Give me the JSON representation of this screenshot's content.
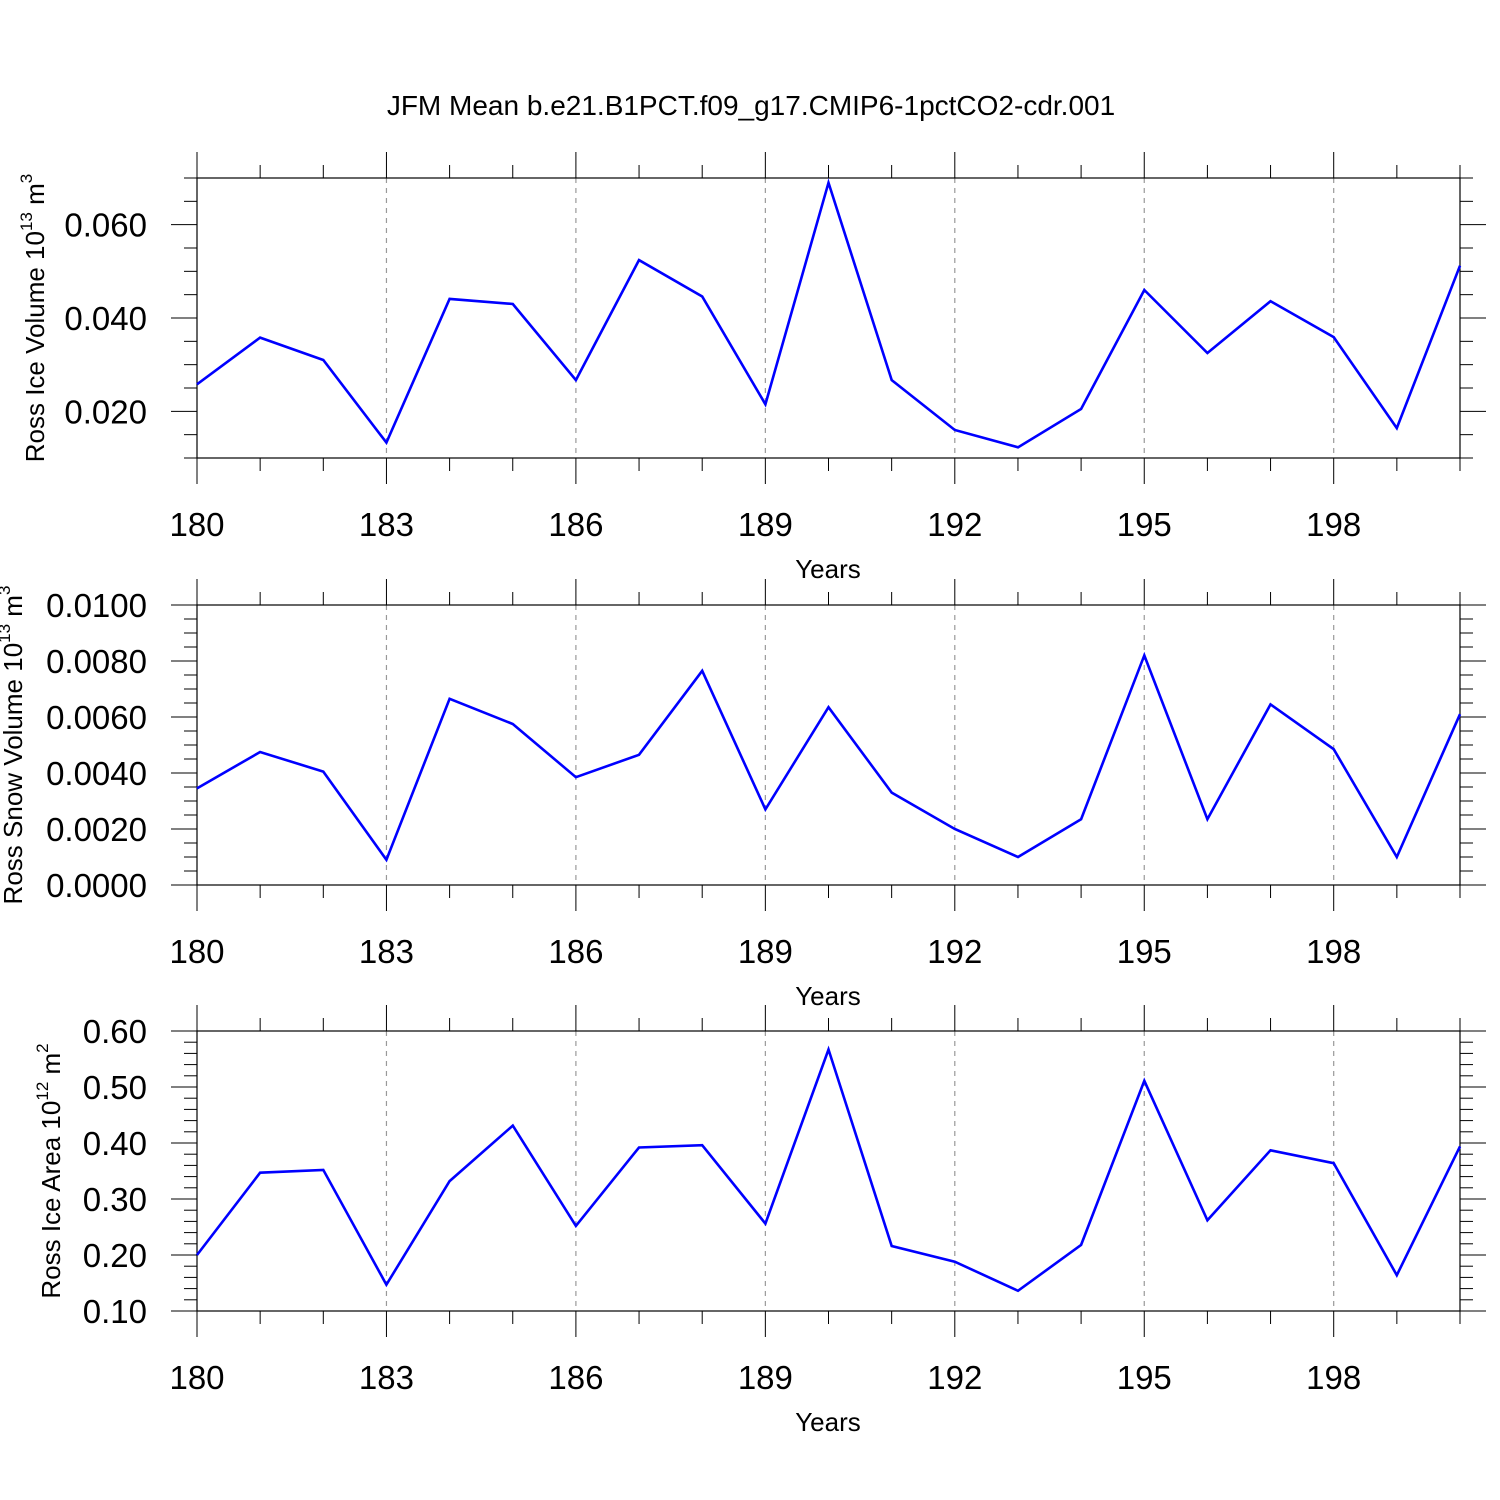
{
  "title": "JFM Mean b.e21.B1PCT.f09_g17.CMIP6-1pctCO2-cdr.001",
  "colors": {
    "line": "#0000ff",
    "grid": "#999999",
    "axis": "#000000"
  },
  "chart_data": [
    {
      "type": "line",
      "ylabel_main": "Ross Ice Volume 10",
      "ylabel_exp": "13",
      "ylabel_unit": " m",
      "ylabel_unit_exp": "3",
      "xlabel": "Years",
      "xlim": [
        180,
        200
      ],
      "ylim": [
        0.01,
        0.07
      ],
      "yticks": [
        0.02,
        0.04,
        0.06
      ],
      "ytick_labels": [
        "0.020",
        "0.040",
        "0.060"
      ],
      "xticks": [
        180,
        183,
        186,
        189,
        192,
        195,
        198
      ],
      "xtick_labels": [
        "180",
        "183",
        "186",
        "189",
        "192",
        "195",
        "198"
      ],
      "grid_x": [
        183,
        186,
        189,
        192,
        195,
        198
      ],
      "x": [
        180,
        181,
        182,
        183,
        184,
        185,
        186,
        187,
        188,
        189,
        190,
        191,
        192,
        193,
        194,
        195,
        196,
        197,
        198,
        199,
        200
      ],
      "series": [
        {
          "values": [
            0.0258,
            0.0358,
            0.031,
            0.0133,
            0.0441,
            0.043,
            0.0267,
            0.0524,
            0.0446,
            0.0215,
            0.069,
            0.0267,
            0.016,
            0.0123,
            0.0205,
            0.046,
            0.0325,
            0.0436,
            0.0359,
            0.0164,
            0.0512
          ]
        }
      ]
    },
    {
      "type": "line",
      "ylabel_main": "Ross Snow Volume 10",
      "ylabel_exp": "13",
      "ylabel_unit": " m",
      "ylabel_unit_exp": "3",
      "xlabel": "Years",
      "xlim": [
        180,
        200
      ],
      "ylim": [
        0.0,
        0.01
      ],
      "yticks": [
        0.0,
        0.002,
        0.004,
        0.006,
        0.008,
        0.01
      ],
      "ytick_labels": [
        "0.0000",
        "0.0020",
        "0.0040",
        "0.0060",
        "0.0080",
        "0.0100"
      ],
      "xticks": [
        180,
        183,
        186,
        189,
        192,
        195,
        198
      ],
      "xtick_labels": [
        "180",
        "183",
        "186",
        "189",
        "192",
        "195",
        "198"
      ],
      "grid_x": [
        183,
        186,
        189,
        192,
        195,
        198
      ],
      "x": [
        180,
        181,
        182,
        183,
        184,
        185,
        186,
        187,
        188,
        189,
        190,
        191,
        192,
        193,
        194,
        195,
        196,
        197,
        198,
        199,
        200
      ],
      "series": [
        {
          "values": [
            0.00345,
            0.00475,
            0.00405,
            0.0009,
            0.00665,
            0.00575,
            0.00385,
            0.00465,
            0.00765,
            0.0027,
            0.00635,
            0.0033,
            0.002,
            0.001,
            0.00235,
            0.0082,
            0.00235,
            0.00645,
            0.00485,
            0.001,
            0.0061
          ]
        }
      ]
    },
    {
      "type": "line",
      "ylabel_main": "Ross Ice Area 10",
      "ylabel_exp": "12",
      "ylabel_unit": " m",
      "ylabel_unit_exp": "2",
      "xlabel": "Years",
      "xlim": [
        180,
        200
      ],
      "ylim": [
        0.1,
        0.6
      ],
      "yticks": [
        0.1,
        0.2,
        0.3,
        0.4,
        0.5,
        0.6
      ],
      "ytick_labels": [
        "0.10",
        "0.20",
        "0.30",
        "0.40",
        "0.50",
        "0.60"
      ],
      "xticks": [
        180,
        183,
        186,
        189,
        192,
        195,
        198
      ],
      "xtick_labels": [
        "180",
        "183",
        "186",
        "189",
        "192",
        "195",
        "198"
      ],
      "grid_x": [
        183,
        186,
        189,
        192,
        195,
        198
      ],
      "x": [
        180,
        181,
        182,
        183,
        184,
        185,
        186,
        187,
        188,
        189,
        190,
        191,
        192,
        193,
        194,
        195,
        196,
        197,
        198,
        199,
        200
      ],
      "series": [
        {
          "values": [
            0.2,
            0.347,
            0.352,
            0.147,
            0.332,
            0.431,
            0.252,
            0.392,
            0.396,
            0.256,
            0.567,
            0.216,
            0.188,
            0.136,
            0.218,
            0.511,
            0.262,
            0.387,
            0.364,
            0.164,
            0.394
          ]
        }
      ]
    }
  ]
}
